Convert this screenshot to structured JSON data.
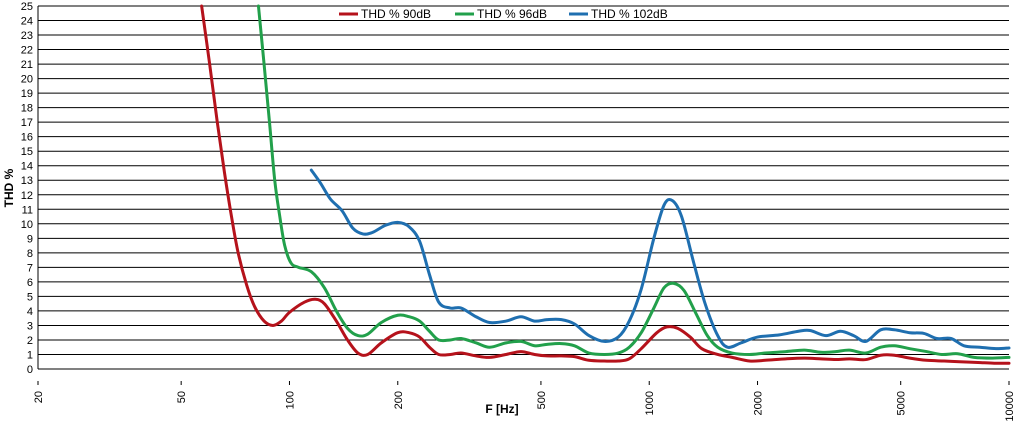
{
  "chart_data": {
    "type": "line",
    "xlabel": "F [Hz]",
    "ylabel": "THD %",
    "x_scale": "log",
    "xlim": [
      20,
      10000
    ],
    "ylim": [
      0,
      25
    ],
    "x_ticks": [
      20,
      50,
      100,
      200,
      500,
      1000,
      2000,
      5000,
      10000
    ],
    "x_tick_labels": [
      "20",
      "50",
      "100",
      "200",
      "500",
      "1000",
      "2000",
      "5000",
      "10000"
    ],
    "y_ticks": [
      0,
      1,
      2,
      3,
      4,
      5,
      6,
      7,
      8,
      9,
      10,
      11,
      12,
      13,
      14,
      15,
      16,
      17,
      18,
      19,
      20,
      21,
      22,
      23,
      24,
      25
    ],
    "grid": "horizontal",
    "legend_position": "top",
    "series": [
      {
        "name": "THD % 90dB",
        "color": "#b5121b",
        "points": [
          [
            57,
            25
          ],
          [
            60,
            21
          ],
          [
            63,
            17
          ],
          [
            66,
            13.5
          ],
          [
            69,
            10.5
          ],
          [
            72,
            8
          ],
          [
            76,
            5.8
          ],
          [
            80,
            4.3
          ],
          [
            85,
            3.3
          ],
          [
            90,
            3.0
          ],
          [
            95,
            3.3
          ],
          [
            100,
            3.9
          ],
          [
            110,
            4.6
          ],
          [
            118,
            4.8
          ],
          [
            125,
            4.5
          ],
          [
            135,
            3.3
          ],
          [
            145,
            2.0
          ],
          [
            155,
            1.1
          ],
          [
            165,
            1.0
          ],
          [
            180,
            1.8
          ],
          [
            200,
            2.5
          ],
          [
            215,
            2.5
          ],
          [
            230,
            2.2
          ],
          [
            245,
            1.5
          ],
          [
            260,
            1.0
          ],
          [
            280,
            1.0
          ],
          [
            300,
            1.1
          ],
          [
            330,
            0.9
          ],
          [
            360,
            0.8
          ],
          [
            400,
            1.0
          ],
          [
            440,
            1.2
          ],
          [
            480,
            1.0
          ],
          [
            520,
            0.9
          ],
          [
            570,
            0.9
          ],
          [
            620,
            0.85
          ],
          [
            680,
            0.6
          ],
          [
            750,
            0.55
          ],
          [
            820,
            0.55
          ],
          [
            880,
            0.7
          ],
          [
            950,
            1.4
          ],
          [
            1050,
            2.5
          ],
          [
            1120,
            2.9
          ],
          [
            1200,
            2.8
          ],
          [
            1300,
            2.2
          ],
          [
            1400,
            1.4
          ],
          [
            1550,
            1.0
          ],
          [
            1700,
            0.8
          ],
          [
            1900,
            0.55
          ],
          [
            2100,
            0.6
          ],
          [
            2400,
            0.7
          ],
          [
            2700,
            0.75
          ],
          [
            3000,
            0.7
          ],
          [
            3300,
            0.65
          ],
          [
            3600,
            0.7
          ],
          [
            4000,
            0.65
          ],
          [
            4400,
            0.95
          ],
          [
            4800,
            0.95
          ],
          [
            5300,
            0.75
          ],
          [
            5900,
            0.6
          ],
          [
            6600,
            0.55
          ],
          [
            7300,
            0.5
          ],
          [
            8200,
            0.45
          ],
          [
            9100,
            0.4
          ],
          [
            10000,
            0.4
          ]
        ]
      },
      {
        "name": "THD % 96dB",
        "color": "#22a04b",
        "points": [
          [
            82,
            25
          ],
          [
            85,
            21
          ],
          [
            88,
            17
          ],
          [
            91,
            13
          ],
          [
            94,
            10.5
          ],
          [
            97,
            8.5
          ],
          [
            101,
            7.3
          ],
          [
            106,
            7.0
          ],
          [
            115,
            6.7
          ],
          [
            125,
            5.6
          ],
          [
            135,
            4.0
          ],
          [
            145,
            2.8
          ],
          [
            155,
            2.3
          ],
          [
            165,
            2.4
          ],
          [
            180,
            3.2
          ],
          [
            200,
            3.7
          ],
          [
            215,
            3.6
          ],
          [
            230,
            3.3
          ],
          [
            245,
            2.6
          ],
          [
            260,
            2.0
          ],
          [
            280,
            2.0
          ],
          [
            300,
            2.1
          ],
          [
            330,
            1.8
          ],
          [
            360,
            1.5
          ],
          [
            400,
            1.8
          ],
          [
            440,
            1.9
          ],
          [
            480,
            1.6
          ],
          [
            520,
            1.7
          ],
          [
            570,
            1.75
          ],
          [
            620,
            1.6
          ],
          [
            680,
            1.1
          ],
          [
            750,
            1.0
          ],
          [
            820,
            1.1
          ],
          [
            880,
            1.5
          ],
          [
            950,
            2.5
          ],
          [
            1030,
            4.2
          ],
          [
            1100,
            5.6
          ],
          [
            1170,
            5.9
          ],
          [
            1250,
            5.4
          ],
          [
            1350,
            3.8
          ],
          [
            1450,
            2.3
          ],
          [
            1550,
            1.5
          ],
          [
            1700,
            1.1
          ],
          [
            1900,
            1.0
          ],
          [
            2100,
            1.1
          ],
          [
            2400,
            1.2
          ],
          [
            2700,
            1.3
          ],
          [
            3000,
            1.15
          ],
          [
            3300,
            1.2
          ],
          [
            3600,
            1.3
          ],
          [
            4000,
            1.1
          ],
          [
            4400,
            1.5
          ],
          [
            4800,
            1.6
          ],
          [
            5300,
            1.4
          ],
          [
            5900,
            1.2
          ],
          [
            6500,
            1.0
          ],
          [
            7200,
            1.05
          ],
          [
            8000,
            0.8
          ],
          [
            9000,
            0.75
          ],
          [
            10000,
            0.8
          ]
        ]
      },
      {
        "name": "THD % 102dB",
        "color": "#1f6fb0",
        "points": [
          [
            115,
            13.7
          ],
          [
            122,
            12.8
          ],
          [
            130,
            11.7
          ],
          [
            140,
            10.9
          ],
          [
            150,
            9.7
          ],
          [
            160,
            9.3
          ],
          [
            170,
            9.4
          ],
          [
            185,
            9.9
          ],
          [
            200,
            10.1
          ],
          [
            215,
            9.8
          ],
          [
            230,
            8.8
          ],
          [
            245,
            6.5
          ],
          [
            260,
            4.6
          ],
          [
            280,
            4.2
          ],
          [
            300,
            4.2
          ],
          [
            330,
            3.6
          ],
          [
            360,
            3.2
          ],
          [
            400,
            3.3
          ],
          [
            440,
            3.6
          ],
          [
            480,
            3.3
          ],
          [
            520,
            3.4
          ],
          [
            570,
            3.4
          ],
          [
            620,
            3.1
          ],
          [
            680,
            2.3
          ],
          [
            750,
            1.9
          ],
          [
            820,
            2.2
          ],
          [
            880,
            3.3
          ],
          [
            950,
            5.5
          ],
          [
            1030,
            9.0
          ],
          [
            1100,
            11.3
          ],
          [
            1160,
            11.6
          ],
          [
            1230,
            10.5
          ],
          [
            1330,
            7.3
          ],
          [
            1430,
            4.5
          ],
          [
            1550,
            2.3
          ],
          [
            1650,
            1.5
          ],
          [
            1800,
            1.8
          ],
          [
            2000,
            2.2
          ],
          [
            2300,
            2.35
          ],
          [
            2600,
            2.6
          ],
          [
            2800,
            2.65
          ],
          [
            3100,
            2.3
          ],
          [
            3400,
            2.6
          ],
          [
            3700,
            2.3
          ],
          [
            4000,
            1.9
          ],
          [
            4400,
            2.7
          ],
          [
            4800,
            2.7
          ],
          [
            5300,
            2.5
          ],
          [
            5800,
            2.45
          ],
          [
            6300,
            2.1
          ],
          [
            6900,
            2.1
          ],
          [
            7500,
            1.6
          ],
          [
            8300,
            1.5
          ],
          [
            9200,
            1.4
          ],
          [
            10000,
            1.45
          ]
        ]
      }
    ]
  }
}
